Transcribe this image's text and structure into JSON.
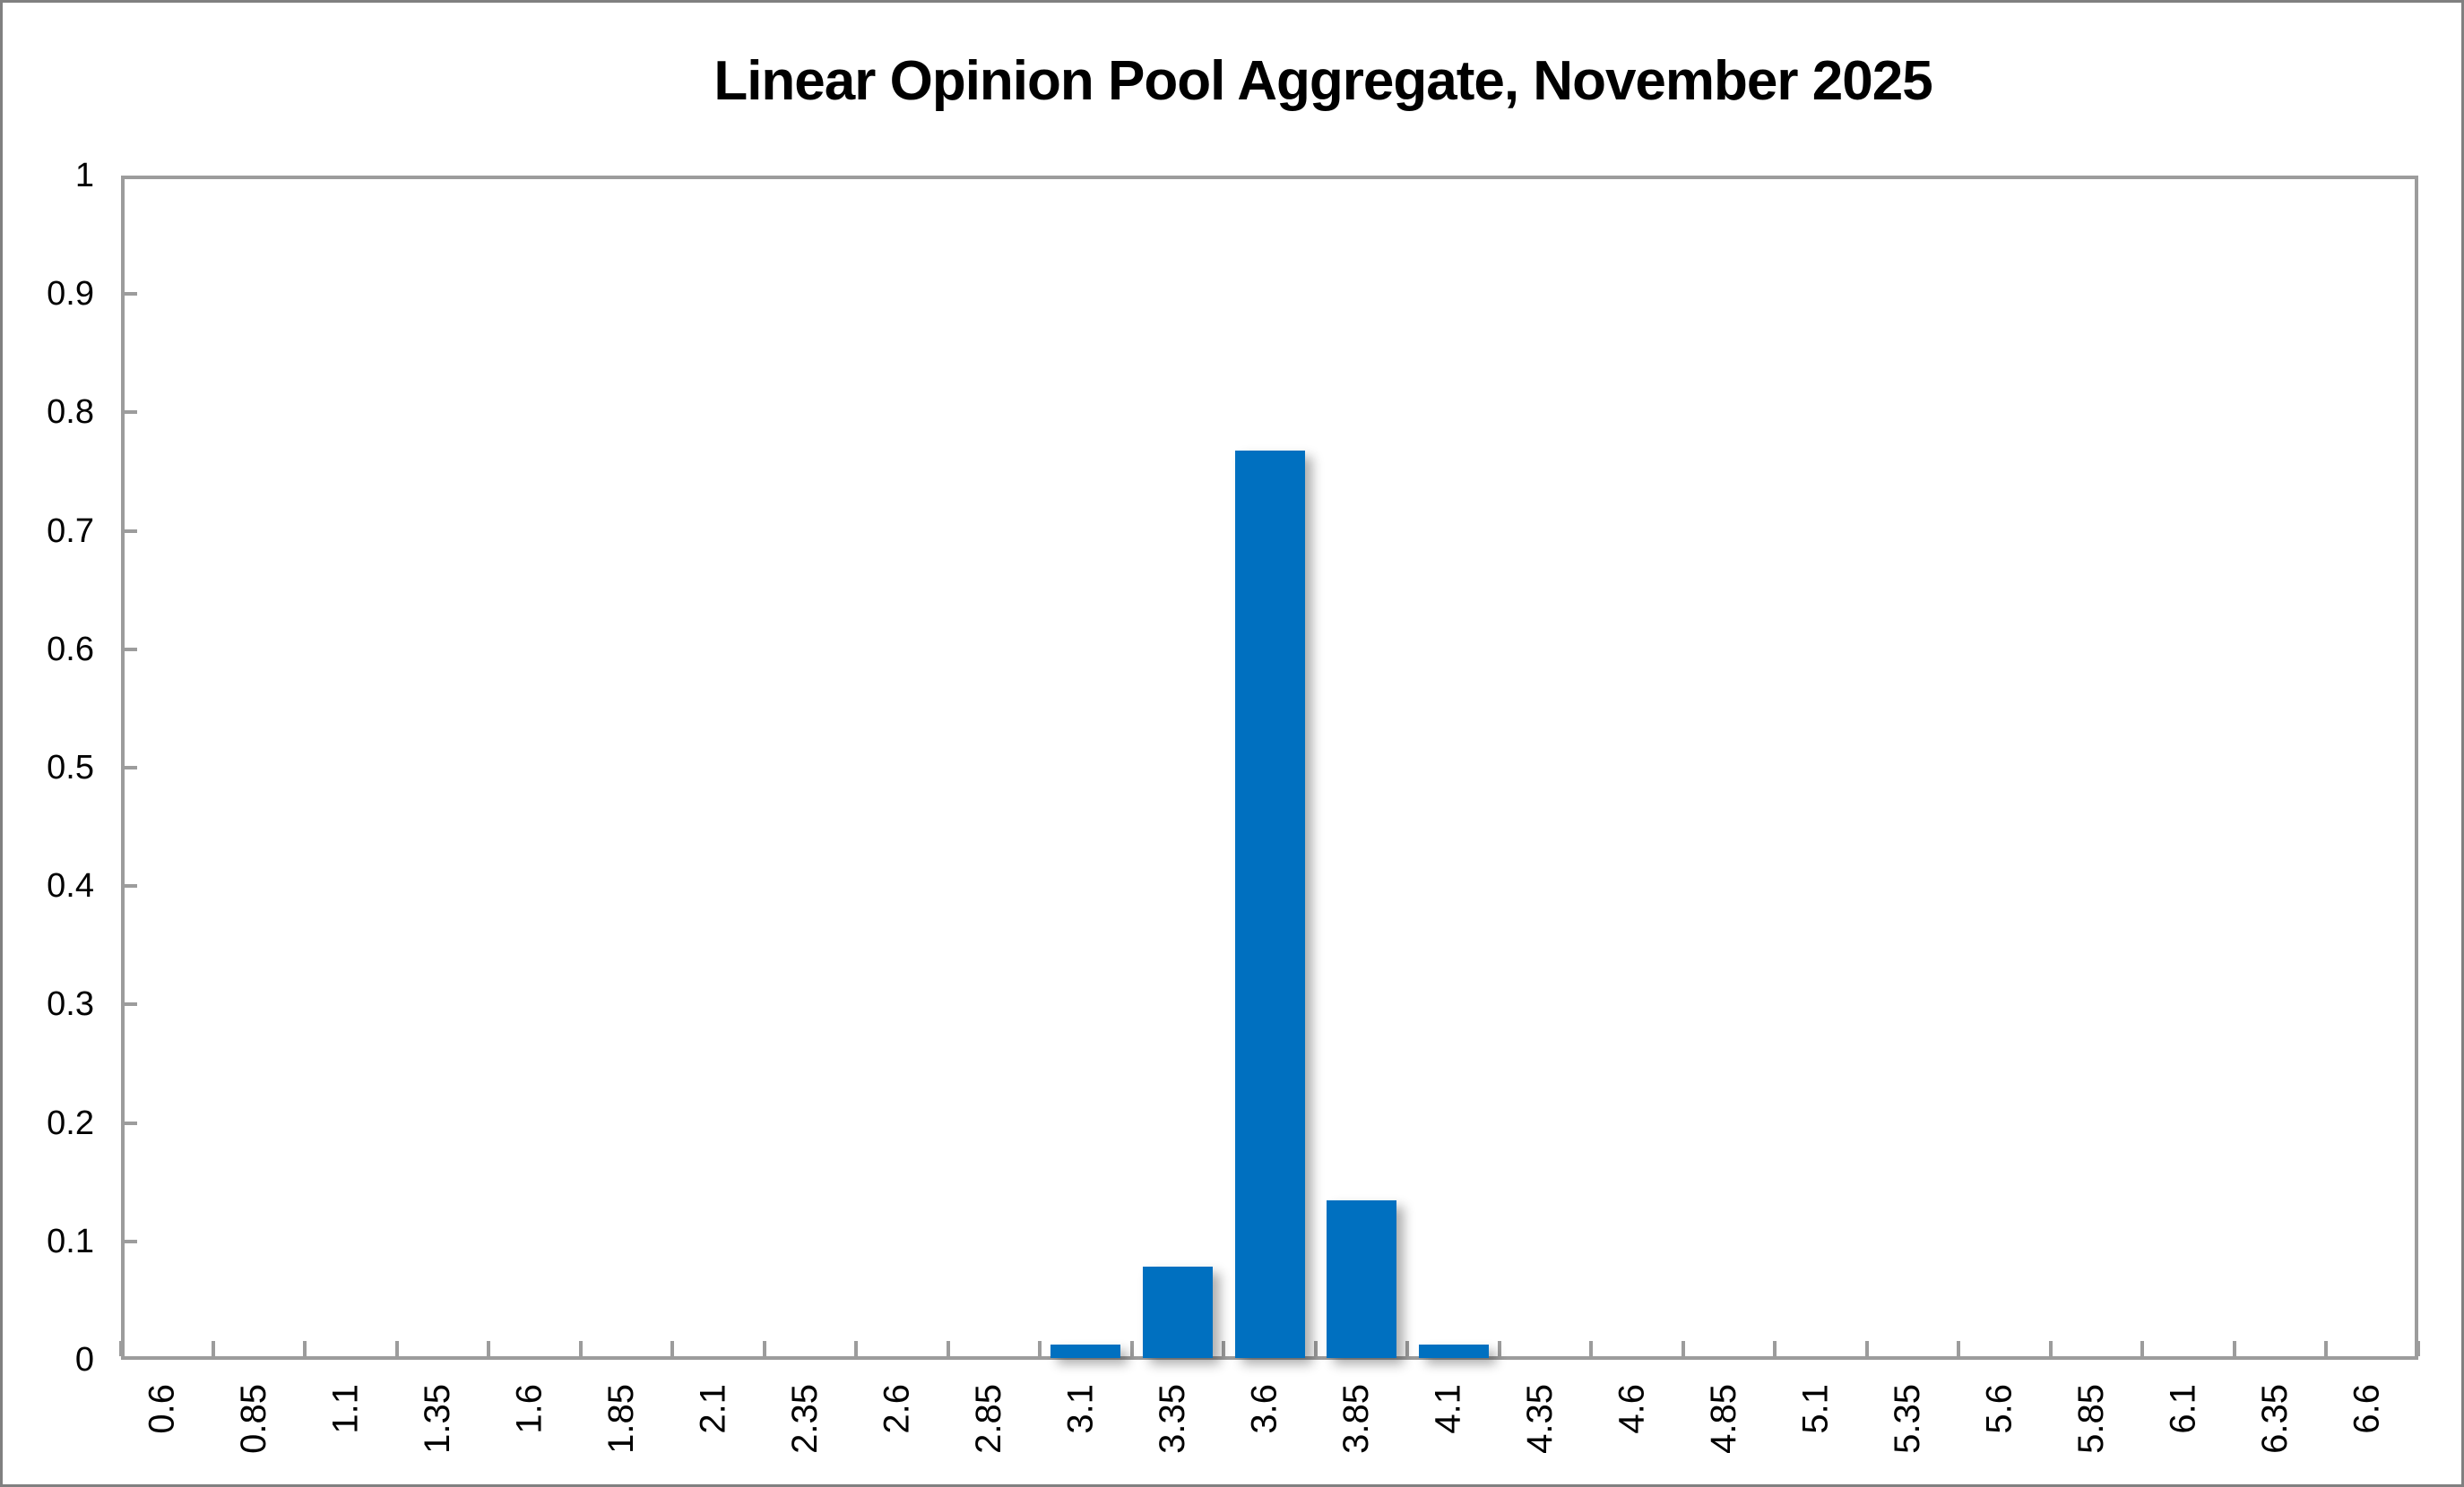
{
  "window": {
    "background": "#FFFFFF",
    "border_color": "#808080"
  },
  "chart_data": {
    "type": "bar",
    "title": "Linear Opinion Pool Aggregate, November 2025",
    "categories": [
      "0.6",
      "0.85",
      "1.1",
      "1.35",
      "1.6",
      "1.85",
      "2.1",
      "2.35",
      "2.6",
      "2.85",
      "3.1",
      "3.35",
      "3.6",
      "3.85",
      "4.1",
      "4.35",
      "4.6",
      "4.85",
      "5.1",
      "5.35",
      "5.6",
      "5.85",
      "6.1",
      "6.35",
      "6.6"
    ],
    "values": [
      0,
      0,
      0,
      0,
      0,
      0,
      0,
      0,
      0,
      0,
      0.011,
      0.077,
      0.766,
      0.133,
      0.011,
      0,
      0,
      0,
      0,
      0,
      0,
      0,
      0,
      0,
      0
    ],
    "xlabel": "",
    "ylabel": "",
    "ylim": [
      0,
      1
    ],
    "ytick_labels": [
      "0",
      "0.1",
      "0.2",
      "0.3",
      "0.4",
      "0.5",
      "0.6",
      "0.7",
      "0.8",
      "0.9",
      "1"
    ],
    "grid": false,
    "legend": false,
    "bar_color": "#0070C0",
    "axis_color": "#9C9C9C",
    "text_color": "#000000"
  }
}
